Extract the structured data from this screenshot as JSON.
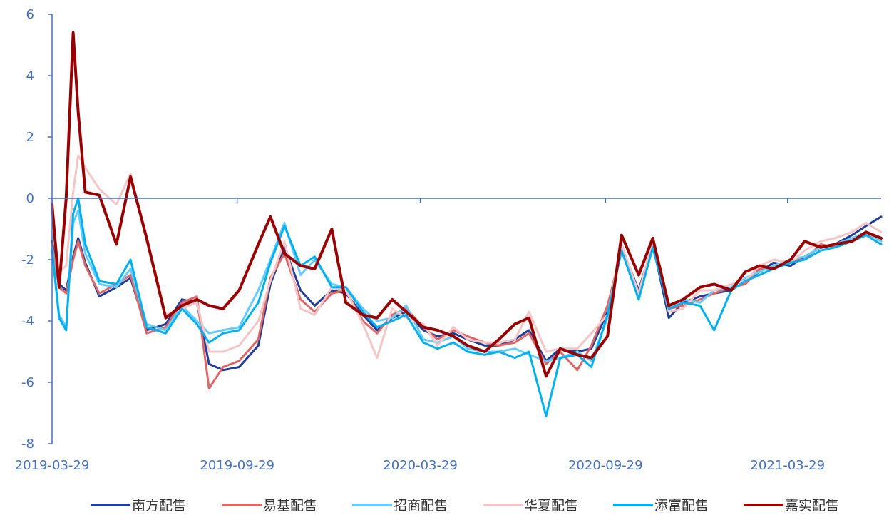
{
  "chart_data": {
    "type": "line",
    "title": "",
    "xlabel": "",
    "ylabel": "",
    "ylim": [
      -8,
      6
    ],
    "yticks": [
      6,
      4,
      2,
      0,
      -2,
      -4,
      -6,
      -8
    ],
    "yticklabels": [
      "6",
      "4",
      "2",
      "0",
      "-2",
      "-4",
      "-6",
      "-8"
    ],
    "xlim": [
      "2019-03-29",
      "2021-06-30"
    ],
    "xticks": [
      "2019-03-29",
      "2019-09-29",
      "2020-03-29",
      "2020-09-29",
      "2021-03-29"
    ],
    "grid": false,
    "legend_position": "bottom",
    "series": [
      {
        "name": "南方配售",
        "color": "#1f3d99",
        "width": 3,
        "x": [
          "2019-03-29",
          "2019-04-05",
          "2019-04-12",
          "2019-04-19",
          "2019-04-24",
          "2019-05-01",
          "2019-05-15",
          "2019-06-01",
          "2019-06-15",
          "2019-07-01",
          "2019-07-20",
          "2019-08-05",
          "2019-08-20",
          "2019-09-01",
          "2019-09-15",
          "2019-10-01",
          "2019-10-20",
          "2019-11-01",
          "2019-11-15",
          "2019-12-01",
          "2019-12-15",
          "2020-01-01",
          "2020-01-15",
          "2020-02-01",
          "2020-02-15",
          "2020-03-01",
          "2020-03-15",
          "2020-04-01",
          "2020-04-15",
          "2020-05-01",
          "2020-05-15",
          "2020-06-01",
          "2020-06-15",
          "2020-07-01",
          "2020-07-15",
          "2020-08-01",
          "2020-08-15",
          "2020-09-01",
          "2020-09-15",
          "2020-10-01",
          "2020-10-15",
          "2020-11-01",
          "2020-11-15",
          "2020-12-01",
          "2020-12-15",
          "2021-01-01",
          "2021-01-15",
          "2021-02-01",
          "2021-02-15",
          "2021-03-01",
          "2021-03-15",
          "2021-04-01",
          "2021-04-15",
          "2021-05-01",
          "2021-05-15",
          "2021-06-01",
          "2021-06-15",
          "2021-06-30"
        ],
        "y": [
          -1.4,
          -2.8,
          -3.0,
          -1.9,
          -1.3,
          -2.1,
          -3.2,
          -2.9,
          -2.6,
          -4.3,
          -4.1,
          -3.3,
          -3.4,
          -5.4,
          -5.6,
          -5.5,
          -4.8,
          -2.8,
          -1.6,
          -3.0,
          -3.5,
          -3.0,
          -3.1,
          -3.8,
          -4.3,
          -3.9,
          -3.7,
          -4.3,
          -4.5,
          -4.4,
          -4.6,
          -4.8,
          -4.8,
          -4.6,
          -4.3,
          -5.3,
          -4.9,
          -5.0,
          -4.9,
          -3.7,
          -1.6,
          -3.0,
          -1.5,
          -3.9,
          -3.4,
          -3.2,
          -3.1,
          -3.0,
          -2.7,
          -2.4,
          -2.1,
          -2.2,
          -1.9,
          -1.6,
          -1.5,
          -1.2,
          -0.9,
          -0.6
        ]
      },
      {
        "name": "易基配售",
        "color": "#e06666",
        "width": 3,
        "x": [
          "2019-03-29",
          "2019-04-05",
          "2019-04-12",
          "2019-04-19",
          "2019-04-24",
          "2019-05-01",
          "2019-05-15",
          "2019-06-01",
          "2019-06-15",
          "2019-07-01",
          "2019-07-20",
          "2019-08-05",
          "2019-08-20",
          "2019-09-01",
          "2019-09-15",
          "2019-10-01",
          "2019-10-20",
          "2019-11-01",
          "2019-11-15",
          "2019-12-01",
          "2019-12-15",
          "2020-01-01",
          "2020-01-15",
          "2020-02-01",
          "2020-02-15",
          "2020-03-01",
          "2020-03-15",
          "2020-04-01",
          "2020-04-15",
          "2020-05-01",
          "2020-05-15",
          "2020-06-01",
          "2020-06-15",
          "2020-07-01",
          "2020-07-15",
          "2020-08-01",
          "2020-08-15",
          "2020-09-01",
          "2020-09-15",
          "2020-10-01",
          "2020-10-15",
          "2020-11-01",
          "2020-11-15",
          "2020-12-01",
          "2020-12-15",
          "2021-01-01",
          "2021-01-15",
          "2021-02-01",
          "2021-02-15",
          "2021-03-01",
          "2021-03-15",
          "2021-04-01",
          "2021-04-15",
          "2021-05-01",
          "2021-05-15",
          "2021-06-01",
          "2021-06-15",
          "2021-06-30"
        ],
        "y": [
          -1.5,
          -2.9,
          -3.1,
          -2.0,
          -1.4,
          -2.2,
          -3.1,
          -2.8,
          -2.5,
          -4.4,
          -4.2,
          -3.4,
          -3.2,
          -6.2,
          -5.5,
          -5.3,
          -4.6,
          -2.6,
          -1.8,
          -3.3,
          -3.7,
          -3.1,
          -3.0,
          -4.0,
          -4.4,
          -3.8,
          -3.6,
          -4.2,
          -4.6,
          -4.3,
          -4.5,
          -4.7,
          -4.8,
          -4.7,
          -4.4,
          -5.4,
          -5.0,
          -5.6,
          -4.8,
          -3.5,
          -1.7,
          -3.2,
          -1.6,
          -3.6,
          -3.5,
          -3.3,
          -3.1,
          -2.9,
          -2.8,
          -2.3,
          -2.3,
          -2.0,
          -2.0,
          -1.5,
          -1.6,
          -1.4,
          -1.2,
          -1.3
        ]
      },
      {
        "name": "招商配售",
        "color": "#66ccff",
        "width": 3,
        "x": [
          "2019-03-29",
          "2019-04-05",
          "2019-04-12",
          "2019-04-19",
          "2019-04-24",
          "2019-05-01",
          "2019-05-15",
          "2019-06-01",
          "2019-06-15",
          "2019-07-01",
          "2019-07-20",
          "2019-08-05",
          "2019-08-20",
          "2019-09-01",
          "2019-09-15",
          "2019-10-01",
          "2019-10-20",
          "2019-11-01",
          "2019-11-15",
          "2019-12-01",
          "2019-12-15",
          "2020-01-01",
          "2020-01-15",
          "2020-02-01",
          "2020-02-15",
          "2020-03-01",
          "2020-03-15",
          "2020-04-01",
          "2020-04-15",
          "2020-05-01",
          "2020-05-15",
          "2020-06-01",
          "2020-06-15",
          "2020-07-01",
          "2020-07-15",
          "2020-08-01",
          "2020-08-15",
          "2020-09-01",
          "2020-09-15",
          "2020-10-01",
          "2020-10-15",
          "2020-11-01",
          "2020-11-15",
          "2020-12-01",
          "2020-12-15",
          "2021-01-01",
          "2021-01-15",
          "2021-02-01",
          "2021-02-15",
          "2021-03-01",
          "2021-03-15",
          "2021-04-01",
          "2021-04-15",
          "2021-05-01",
          "2021-05-15",
          "2021-06-01",
          "2021-06-15",
          "2021-06-30"
        ],
        "y": [
          -1.6,
          -3.8,
          -4.2,
          -0.8,
          -0.4,
          -1.8,
          -2.8,
          -2.9,
          -2.3,
          -4.1,
          -4.3,
          -3.5,
          -4.0,
          -4.4,
          -4.3,
          -4.2,
          -3.0,
          -2.0,
          -0.8,
          -2.5,
          -2.0,
          -2.8,
          -2.9,
          -3.6,
          -4.0,
          -3.9,
          -3.5,
          -4.6,
          -4.7,
          -4.5,
          -4.9,
          -5.0,
          -5.0,
          -4.9,
          -5.1,
          -5.3,
          -5.2,
          -5.0,
          -5.3,
          -3.9,
          -1.6,
          -3.2,
          -1.4,
          -3.5,
          -3.3,
          -3.4,
          -3.0,
          -2.9,
          -2.6,
          -2.4,
          -2.2,
          -2.0,
          -1.9,
          -1.6,
          -1.5,
          -1.3,
          -1.1,
          -1.4
        ]
      },
      {
        "name": "华夏配售",
        "color": "#f4c6c6",
        "width": 3,
        "x": [
          "2019-03-29",
          "2019-04-05",
          "2019-04-12",
          "2019-04-19",
          "2019-04-24",
          "2019-05-01",
          "2019-05-15",
          "2019-06-01",
          "2019-06-15",
          "2019-07-01",
          "2019-07-20",
          "2019-08-05",
          "2019-08-20",
          "2019-09-01",
          "2019-09-15",
          "2019-10-01",
          "2019-10-20",
          "2019-11-01",
          "2019-11-15",
          "2019-12-01",
          "2019-12-15",
          "2020-01-01",
          "2020-01-15",
          "2020-02-01",
          "2020-02-15",
          "2020-03-01",
          "2020-03-15",
          "2020-04-01",
          "2020-04-15",
          "2020-05-01",
          "2020-05-15",
          "2020-06-01",
          "2020-06-15",
          "2020-07-01",
          "2020-07-15",
          "2020-08-01",
          "2020-08-15",
          "2020-09-01",
          "2020-09-15",
          "2020-10-01",
          "2020-10-15",
          "2020-11-01",
          "2020-11-15",
          "2020-12-01",
          "2020-12-15",
          "2021-01-01",
          "2021-01-15",
          "2021-02-01",
          "2021-02-15",
          "2021-03-01",
          "2021-03-15",
          "2021-04-01",
          "2021-04-15",
          "2021-05-01",
          "2021-05-15",
          "2021-06-01",
          "2021-06-15",
          "2021-06-30"
        ],
        "y": [
          -0.5,
          -2.4,
          -2.2,
          0.2,
          1.4,
          1.0,
          0.3,
          -0.2,
          0.8,
          -1.4,
          -3.8,
          -3.6,
          -3.4,
          -5.0,
          -5.0,
          -4.8,
          -4.0,
          -2.7,
          -1.4,
          -3.6,
          -3.8,
          -2.9,
          -3.0,
          -4.1,
          -5.2,
          -3.6,
          -3.9,
          -4.1,
          -4.8,
          -4.2,
          -4.6,
          -4.7,
          -4.7,
          -4.6,
          -3.7,
          -5.0,
          -4.9,
          -4.9,
          -4.4,
          -3.8,
          -1.5,
          -3.1,
          -1.4,
          -3.7,
          -3.6,
          -3.0,
          -3.0,
          -2.8,
          -2.7,
          -2.2,
          -2.0,
          -2.1,
          -1.7,
          -1.4,
          -1.3,
          -1.1,
          -0.8,
          -1.1
        ]
      },
      {
        "name": "添富配售",
        "color": "#00b0f0",
        "width": 3,
        "x": [
          "2019-03-29",
          "2019-04-05",
          "2019-04-12",
          "2019-04-19",
          "2019-04-24",
          "2019-05-01",
          "2019-05-15",
          "2019-06-01",
          "2019-06-15",
          "2019-07-01",
          "2019-07-20",
          "2019-08-05",
          "2019-08-20",
          "2019-09-01",
          "2019-09-15",
          "2019-10-01",
          "2019-10-20",
          "2019-11-01",
          "2019-11-15",
          "2019-12-01",
          "2019-12-15",
          "2020-01-01",
          "2020-01-15",
          "2020-02-01",
          "2020-02-15",
          "2020-03-01",
          "2020-03-15",
          "2020-04-01",
          "2020-04-15",
          "2020-05-01",
          "2020-05-15",
          "2020-06-01",
          "2020-06-15",
          "2020-07-01",
          "2020-07-15",
          "2020-08-01",
          "2020-08-15",
          "2020-09-01",
          "2020-09-15",
          "2020-10-01",
          "2020-10-15",
          "2020-11-01",
          "2020-11-15",
          "2020-12-01",
          "2020-12-15",
          "2021-01-01",
          "2021-01-15",
          "2021-02-01",
          "2021-02-15",
          "2021-03-01",
          "2021-03-15",
          "2021-04-01",
          "2021-04-15",
          "2021-05-01",
          "2021-05-15",
          "2021-06-01",
          "2021-06-15",
          "2021-06-30"
        ],
        "y": [
          -1.7,
          -3.9,
          -4.3,
          -0.5,
          0.0,
          -1.5,
          -2.7,
          -2.8,
          -2.0,
          -4.2,
          -4.4,
          -3.6,
          -4.1,
          -4.7,
          -4.4,
          -4.3,
          -3.4,
          -2.1,
          -0.9,
          -2.2,
          -1.9,
          -2.9,
          -2.9,
          -3.7,
          -4.2,
          -4.0,
          -3.8,
          -4.7,
          -4.9,
          -4.7,
          -5.0,
          -5.1,
          -5.0,
          -5.2,
          -5.0,
          -7.1,
          -5.2,
          -5.1,
          -5.5,
          -3.8,
          -1.7,
          -3.3,
          -1.6,
          -3.6,
          -3.4,
          -3.5,
          -4.3,
          -3.0,
          -2.7,
          -2.5,
          -2.3,
          -2.1,
          -2.0,
          -1.7,
          -1.6,
          -1.4,
          -1.2,
          -1.5
        ]
      },
      {
        "name": "嘉实配售",
        "color": "#990000",
        "width": 4,
        "x": [
          "2019-03-29",
          "2019-04-05",
          "2019-04-12",
          "2019-04-19",
          "2019-04-24",
          "2019-05-01",
          "2019-05-15",
          "2019-06-01",
          "2019-06-15",
          "2019-07-01",
          "2019-07-20",
          "2019-08-05",
          "2019-08-20",
          "2019-09-01",
          "2019-09-15",
          "2019-10-01",
          "2019-10-20",
          "2019-11-01",
          "2019-11-15",
          "2019-12-01",
          "2019-12-15",
          "2020-01-01",
          "2020-01-15",
          "2020-02-01",
          "2020-02-15",
          "2020-03-01",
          "2020-03-15",
          "2020-04-01",
          "2020-04-15",
          "2020-05-01",
          "2020-05-15",
          "2020-06-01",
          "2020-06-15",
          "2020-07-01",
          "2020-07-15",
          "2020-08-01",
          "2020-08-15",
          "2020-09-01",
          "2020-09-15",
          "2020-10-01",
          "2020-10-15",
          "2020-11-01",
          "2020-11-15",
          "2020-12-01",
          "2020-12-15",
          "2021-01-01",
          "2021-01-15",
          "2021-02-01",
          "2021-02-15",
          "2021-03-01",
          "2021-03-15",
          "2021-04-01",
          "2021-04-15",
          "2021-05-01",
          "2021-05-15",
          "2021-06-01",
          "2021-06-15",
          "2021-06-30"
        ],
        "y": [
          -0.2,
          -2.9,
          0.0,
          5.4,
          2.8,
          0.2,
          0.1,
          -1.5,
          0.7,
          -1.3,
          -3.9,
          -3.5,
          -3.3,
          -3.5,
          -3.6,
          -3.0,
          -1.5,
          -0.6,
          -1.8,
          -2.2,
          -2.3,
          -1.0,
          -3.4,
          -3.8,
          -3.9,
          -3.3,
          -3.7,
          -4.2,
          -4.3,
          -4.5,
          -4.8,
          -5.0,
          -4.6,
          -4.1,
          -3.9,
          -5.8,
          -4.9,
          -5.1,
          -5.2,
          -4.5,
          -1.2,
          -2.5,
          -1.3,
          -3.5,
          -3.3,
          -2.9,
          -2.8,
          -3.0,
          -2.4,
          -2.2,
          -2.3,
          -2.0,
          -1.4,
          -1.6,
          -1.5,
          -1.4,
          -1.1,
          -1.3
        ]
      }
    ]
  }
}
